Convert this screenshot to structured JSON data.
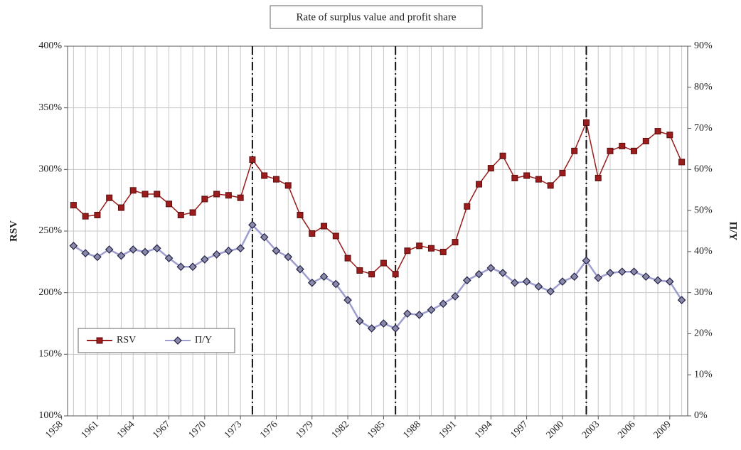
{
  "chart_data": {
    "type": "line",
    "title": "Rate of surplus value and profit share",
    "y_label": "RSV",
    "y2_label": "Π/Y",
    "x": [
      1959,
      1960,
      1961,
      1962,
      1963,
      1964,
      1965,
      1966,
      1967,
      1968,
      1969,
      1970,
      1971,
      1972,
      1973,
      1974,
      1975,
      1976,
      1977,
      1978,
      1979,
      1980,
      1981,
      1982,
      1983,
      1984,
      1985,
      1986,
      1987,
      1988,
      1989,
      1990,
      1991,
      1992,
      1993,
      1994,
      1995,
      1996,
      1997,
      1998,
      1999,
      2000,
      2001,
      2002,
      2003,
      2004,
      2005,
      2006,
      2007,
      2008,
      2009,
      2010
    ],
    "xlim": [
      1958.5,
      2010.5
    ],
    "xticks": [
      1958,
      1961,
      1964,
      1967,
      1970,
      1973,
      1976,
      1979,
      1982,
      1985,
      1988,
      1991,
      1994,
      1997,
      2000,
      2003,
      2006,
      2009
    ],
    "ylim": [
      100,
      400
    ],
    "yticks": [
      {
        "value": 100,
        "label": "100%"
      },
      {
        "value": 150,
        "label": "150%"
      },
      {
        "value": 200,
        "label": "200%"
      },
      {
        "value": 250,
        "label": "250%"
      },
      {
        "value": 300,
        "label": "300%"
      },
      {
        "value": 350,
        "label": "350%"
      },
      {
        "value": 400,
        "label": "400%"
      }
    ],
    "y2lim": [
      0,
      90
    ],
    "y2ticks": [
      {
        "value": 0,
        "label": "0%"
      },
      {
        "value": 10,
        "label": "10%"
      },
      {
        "value": 20,
        "label": "20%"
      },
      {
        "value": 30,
        "label": "30%"
      },
      {
        "value": 40,
        "label": "40%"
      },
      {
        "value": 50,
        "label": "50%"
      },
      {
        "value": 60,
        "label": "60%"
      },
      {
        "value": 70,
        "label": "70%"
      },
      {
        "value": 80,
        "label": "80%"
      },
      {
        "value": 90,
        "label": "90%"
      }
    ],
    "grid": true,
    "legend": "lower left",
    "vlines": [
      1974,
      1986,
      2002
    ],
    "series": [
      {
        "name": "RSV",
        "color": "#9b1c1c",
        "marker": "square",
        "axis": "y",
        "values": [
          271,
          262,
          263,
          277,
          269,
          283,
          280,
          280,
          272,
          263,
          265,
          276,
          280,
          279,
          277,
          308,
          295,
          292,
          287,
          263,
          248,
          254,
          246,
          228,
          218,
          215,
          224,
          215,
          234,
          238,
          236,
          233,
          241,
          270,
          288,
          301,
          311,
          293,
          295,
          292,
          287,
          297,
          315,
          338,
          293,
          315,
          319,
          315,
          323,
          331,
          328,
          306
        ]
      },
      {
        "name": "Π/Y",
        "color": "#9d9dd0",
        "marker": "diamond",
        "axis": "y2",
        "values": [
          41.4,
          39.6,
          38.7,
          40.5,
          39,
          40.5,
          39.9,
          40.8,
          38.4,
          36.3,
          36.3,
          38.1,
          39.3,
          40.2,
          40.8,
          46.5,
          43.5,
          40.2,
          38.7,
          35.7,
          32.4,
          33.9,
          32.1,
          28.2,
          23.1,
          21.3,
          22.5,
          21.3,
          24.9,
          24.6,
          25.8,
          27.3,
          29.1,
          33,
          34.5,
          36,
          34.8,
          32.4,
          32.7,
          31.5,
          30.3,
          32.7,
          33.9,
          37.8,
          33.6,
          34.8,
          35.1,
          35.1,
          33.9,
          33,
          32.7,
          28.2
        ]
      }
    ]
  }
}
